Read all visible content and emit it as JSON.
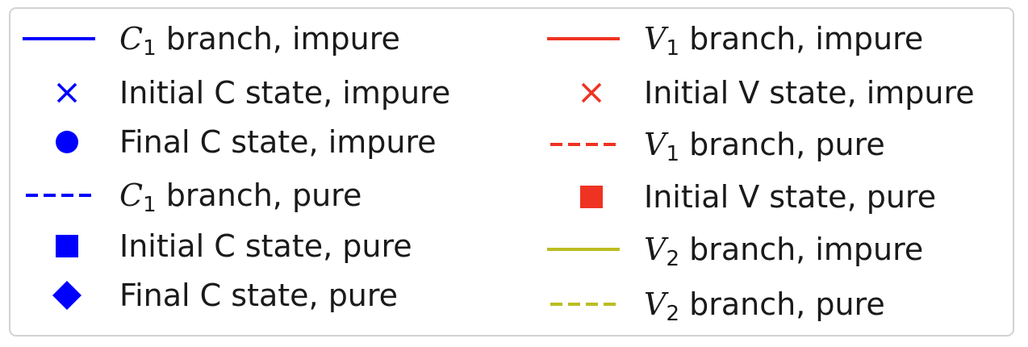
{
  "chart_data": {
    "type": "legend",
    "legend": {
      "columns": [
        [
          {
            "id": "c1-impure",
            "symbol": "C",
            "subscript": "1",
            "text": " branch, impure",
            "marker": "solid-line",
            "color": "#0000ff"
          },
          {
            "id": "c-initial-impure",
            "symbol": "",
            "subscript": "",
            "text": "Initial C state, impure",
            "marker": "x",
            "color": "#0000ff"
          },
          {
            "id": "c-final-impure",
            "symbol": "",
            "subscript": "",
            "text": "Final C state, impure",
            "marker": "circle",
            "color": "#0000ff"
          },
          {
            "id": "c1-pure",
            "symbol": "C",
            "subscript": "1",
            "text": " branch, pure",
            "marker": "dashed-line",
            "color": "#0000ff"
          },
          {
            "id": "c-initial-pure",
            "symbol": "",
            "subscript": "",
            "text": "Initial C state, pure",
            "marker": "square",
            "color": "#0000ff"
          },
          {
            "id": "c-final-pure",
            "symbol": "",
            "subscript": "",
            "text": "Final C state, pure",
            "marker": "diamond",
            "color": "#0000ff"
          }
        ],
        [
          {
            "id": "v1-impure",
            "symbol": "V",
            "subscript": "1",
            "text": " branch, impure",
            "marker": "solid-line",
            "color": "#ee3322"
          },
          {
            "id": "v-initial-impure",
            "symbol": "",
            "subscript": "",
            "text": "Initial V state, impure",
            "marker": "x",
            "color": "#ee3322"
          },
          {
            "id": "v1-pure",
            "symbol": "V",
            "subscript": "1",
            "text": " branch, pure",
            "marker": "dashed-line",
            "color": "#ee3322"
          },
          {
            "id": "v-initial-pure",
            "symbol": "",
            "subscript": "",
            "text": "Initial V state, pure",
            "marker": "square",
            "color": "#ee3322"
          },
          {
            "id": "v2-impure",
            "symbol": "V",
            "subscript": "2",
            "text": " branch, impure",
            "marker": "solid-line",
            "color": "#bcbd22"
          },
          {
            "id": "v2-pure",
            "symbol": "V",
            "subscript": "2",
            "text": " branch, pure",
            "marker": "dashed-line",
            "color": "#bcbd22"
          }
        ]
      ]
    }
  }
}
